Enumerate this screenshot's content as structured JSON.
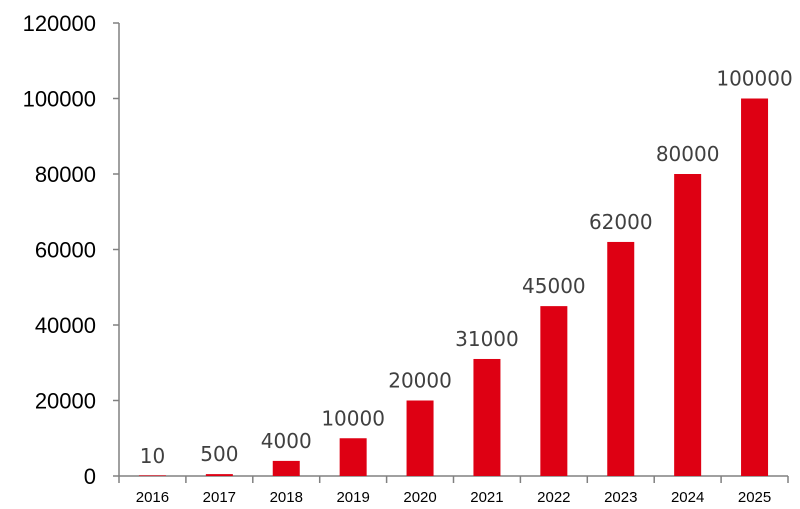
{
  "chart_data": {
    "type": "bar",
    "categories": [
      "2016",
      "2017",
      "2018",
      "2019",
      "2020",
      "2021",
      "2022",
      "2023",
      "2024",
      "2025"
    ],
    "values": [
      10,
      500,
      4000,
      10000,
      20000,
      31000,
      45000,
      62000,
      80000,
      100000
    ],
    "data_labels": [
      "10",
      "500",
      "4000",
      "10000",
      "20000",
      "31000",
      "45000",
      "62000",
      "80000",
      "100000"
    ],
    "y_ticks": [
      "0",
      "20000",
      "40000",
      "60000",
      "80000",
      "100000",
      "120000"
    ],
    "ylim": [
      0,
      120000
    ],
    "title": "",
    "xlabel": "",
    "ylabel": "",
    "grid": false,
    "bar_color": "#DE0013"
  }
}
